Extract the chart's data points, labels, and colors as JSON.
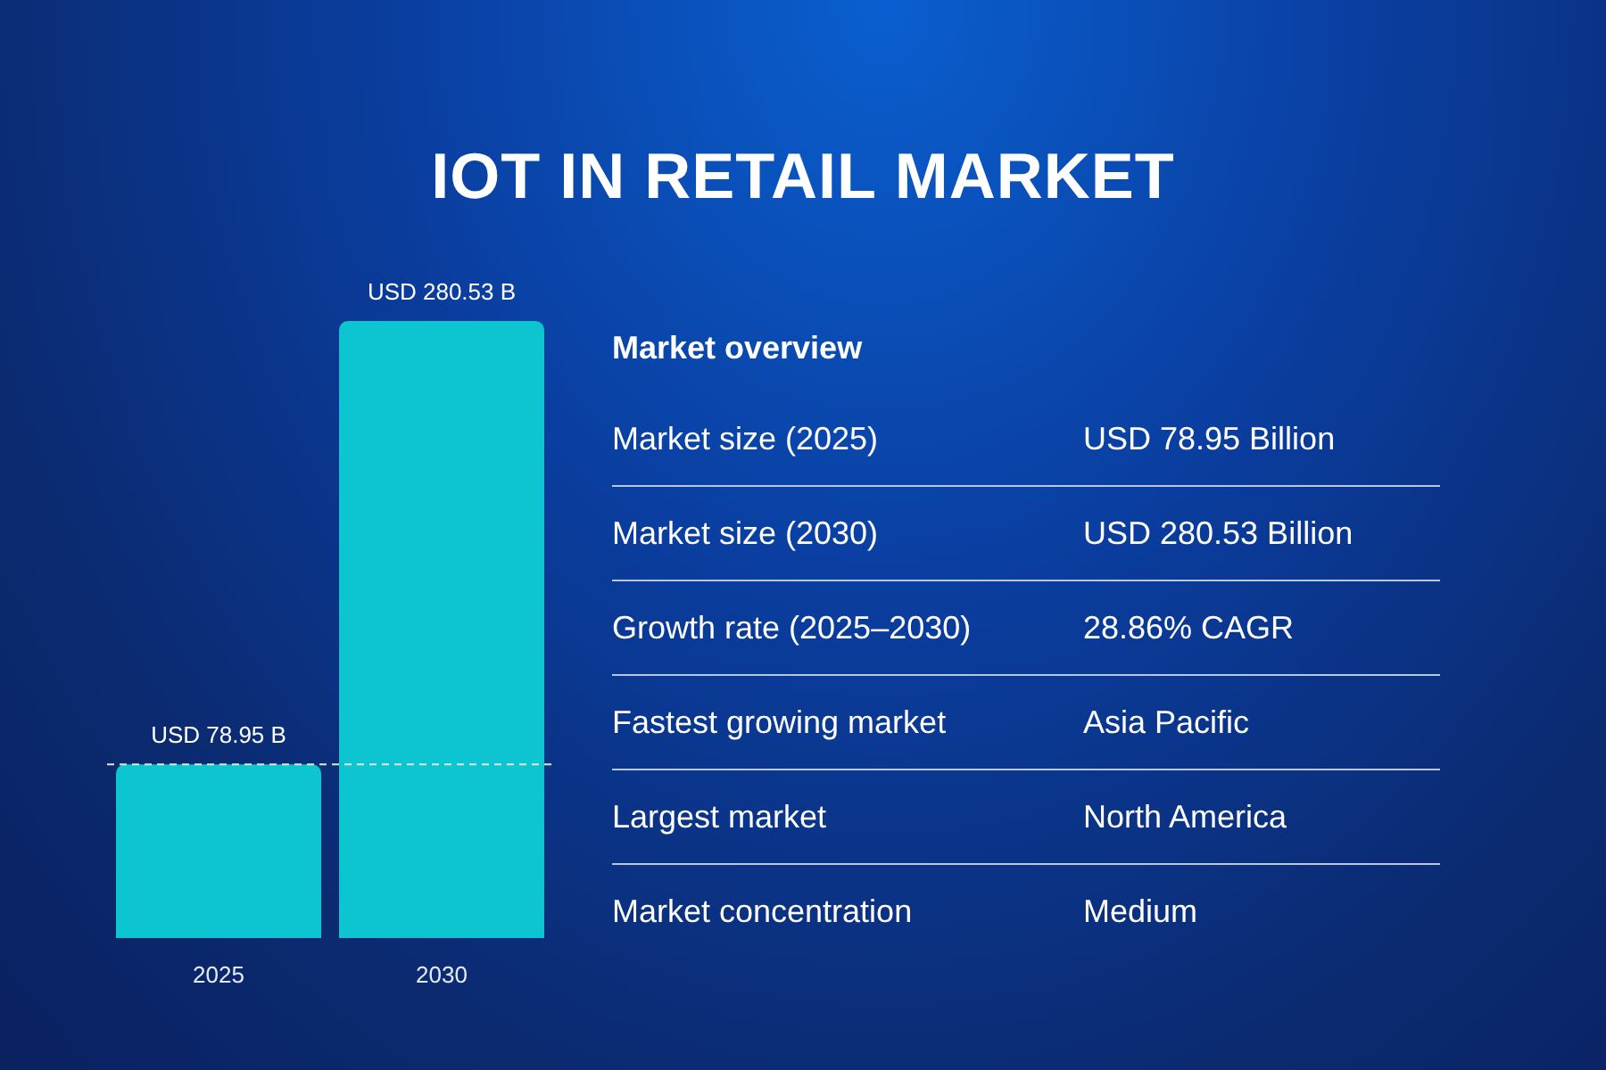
{
  "chart_data": [
    {
      "type": "bar",
      "title": "IOT IN RETAIL MARKET",
      "categories": [
        "2025",
        "2030"
      ],
      "values": [
        78.95,
        280.53
      ],
      "value_labels": [
        "USD 78.95 B",
        "USD 280.53 B"
      ],
      "color": "#0cc5d0",
      "tick_labels": "x",
      "ref_lines": [
        {
          "axis": "y",
          "value": 78.95,
          "color": "#dce6f5",
          "line_style": "dashed"
        }
      ]
    },
    {
      "type": "other",
      "title": "Market overview",
      "annotations": [
        "Market size (2025)",
        "USD 78.95 Billion",
        "Market size (2030)",
        "USD 280.53 Billion",
        "Growth rate (2025–2030)",
        "28.86% CAGR",
        "Fastest growing market",
        "Asia Pacific",
        "Largest market",
        "North America",
        "Market concentration",
        "Medium"
      ]
    }
  ]
}
